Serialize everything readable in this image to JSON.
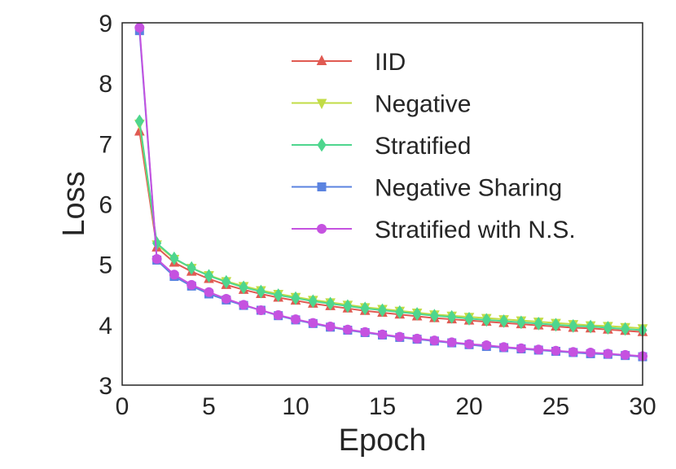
{
  "chart_data": {
    "type": "line",
    "title": "",
    "xlabel": "Epoch",
    "ylabel": "Loss",
    "xlim": [
      0,
      30
    ],
    "ylim": [
      3,
      9
    ],
    "xticks": [
      0,
      5,
      10,
      15,
      20,
      25,
      30
    ],
    "yticks": [
      3,
      4,
      5,
      6,
      7,
      8,
      9
    ],
    "xtick_labels": [
      "0",
      "5",
      "10",
      "15",
      "20",
      "25",
      "30"
    ],
    "ytick_labels": [
      "3",
      "4",
      "5",
      "6",
      "7",
      "8",
      "9"
    ],
    "grid": false,
    "legend_position": "top-right",
    "x": [
      1,
      2,
      3,
      4,
      5,
      6,
      7,
      8,
      9,
      10,
      11,
      12,
      13,
      14,
      15,
      16,
      17,
      18,
      19,
      20,
      21,
      22,
      23,
      24,
      25,
      26,
      27,
      28,
      29,
      30
    ],
    "series": [
      {
        "name": "IID",
        "color": "#e05a52",
        "marker": "triangle-up",
        "values": [
          7.2,
          5.28,
          5.03,
          4.88,
          4.76,
          4.66,
          4.58,
          4.51,
          4.45,
          4.4,
          4.35,
          4.31,
          4.27,
          4.23,
          4.2,
          4.17,
          4.14,
          4.11,
          4.09,
          4.07,
          4.05,
          4.03,
          4.01,
          3.99,
          3.97,
          3.95,
          3.94,
          3.92,
          3.9,
          3.88
        ]
      },
      {
        "name": "Negative",
        "color": "#c2dc46",
        "marker": "triangle-down",
        "values": [
          7.33,
          5.33,
          5.09,
          4.94,
          4.82,
          4.72,
          4.64,
          4.57,
          4.51,
          4.46,
          4.41,
          4.37,
          4.33,
          4.29,
          4.26,
          4.23,
          4.2,
          4.17,
          4.15,
          4.13,
          4.11,
          4.09,
          4.07,
          4.05,
          4.03,
          4.01,
          3.99,
          3.98,
          3.96,
          3.94
        ]
      },
      {
        "name": "Stratified",
        "color": "#4ed68e",
        "marker": "diamond",
        "values": [
          7.37,
          5.35,
          5.1,
          4.94,
          4.81,
          4.71,
          4.62,
          4.55,
          4.49,
          4.44,
          4.39,
          4.35,
          4.31,
          4.27,
          4.24,
          4.21,
          4.18,
          4.15,
          4.13,
          4.1,
          4.08,
          4.06,
          4.04,
          4.02,
          4.0,
          3.98,
          3.97,
          3.95,
          3.93,
          3.91
        ]
      },
      {
        "name": "Negative Sharing",
        "color": "#5b83e0",
        "marker": "square",
        "values": [
          8.87,
          5.07,
          4.8,
          4.64,
          4.51,
          4.41,
          4.32,
          4.24,
          4.15,
          4.08,
          4.02,
          3.96,
          3.91,
          3.87,
          3.83,
          3.79,
          3.76,
          3.73,
          3.7,
          3.67,
          3.64,
          3.62,
          3.6,
          3.58,
          3.56,
          3.54,
          3.52,
          3.51,
          3.49,
          3.47
        ]
      },
      {
        "name": "Stratified with N.S.",
        "color": "#c552e0",
        "marker": "circle",
        "values": [
          8.92,
          5.09,
          4.83,
          4.66,
          4.54,
          4.43,
          4.33,
          4.24,
          4.16,
          4.09,
          4.03,
          3.97,
          3.92,
          3.88,
          3.84,
          3.8,
          3.77,
          3.74,
          3.71,
          3.68,
          3.66,
          3.63,
          3.61,
          3.59,
          3.57,
          3.55,
          3.54,
          3.52,
          3.5,
          3.48
        ]
      }
    ]
  }
}
